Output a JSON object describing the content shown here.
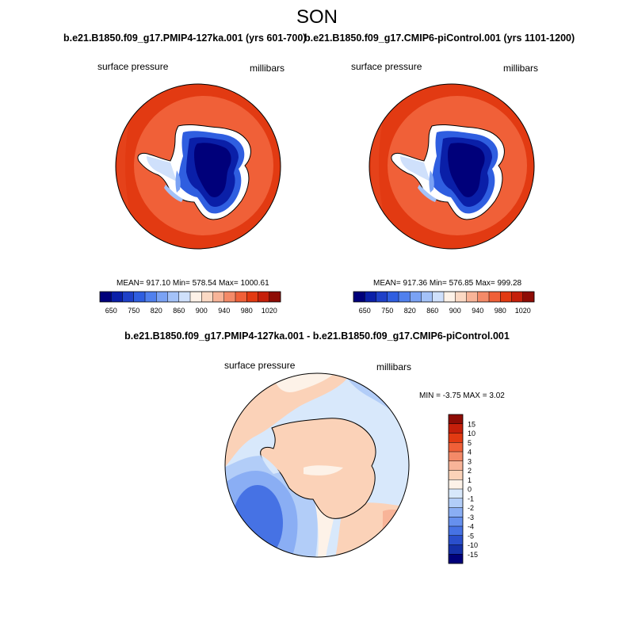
{
  "figure": {
    "title": "SON"
  },
  "panels": [
    {
      "case_title": "b.e21.B1850.f09_g17.PMIP4-127ka.001 (yrs 601-700)",
      "variable_label": "surface pressure",
      "units_label": "millibars",
      "stats": {
        "mean": "917.10",
        "min": "578.54",
        "max": "1000.61"
      },
      "stats_text": "MEAN= 917.10  Min= 578.54  Max= 1000.61"
    },
    {
      "case_title": "b.e21.B1850.f09_g17.CMIP6-piControl.001 (yrs 1101-1200)",
      "variable_label": "surface pressure",
      "units_label": "millibars",
      "stats": {
        "mean": "917.36",
        "min": "576.85",
        "max": "999.28"
      },
      "stats_text": "MEAN= 917.36  Min= 576.85  Max= 999.28"
    }
  ],
  "colorbar_abs": {
    "levels": [
      650,
      700,
      750,
      780,
      820,
      840,
      860,
      880,
      900,
      920,
      940,
      960,
      980,
      1000,
      1020
    ],
    "tick_labels": [
      "650",
      "750",
      "820",
      "860",
      "900",
      "940",
      "980",
      "1020"
    ],
    "colors": [
      "#00007a",
      "#0a1fa8",
      "#1e40c8",
      "#2f5ee0",
      "#5080ee",
      "#7aa2f4",
      "#a4c2f8",
      "#cfe0fb",
      "#fdf2e8",
      "#fbd9c4",
      "#f8b498",
      "#f48a68",
      "#f06038",
      "#e23a12",
      "#c51f0a",
      "#8e0c05"
    ]
  },
  "difference": {
    "title": "b.e21.B1850.f09_g17.PMIP4-127ka.001 - b.e21.B1850.f09_g17.CMIP6-piControl.001",
    "variable_label": "surface pressure",
    "units_label": "millibars",
    "min": "-3.75",
    "max": "3.02",
    "minmax_text": "MIN =  -3.75 MAX =   3.02",
    "colorbar": {
      "levels": [
        15,
        10,
        5,
        4,
        3,
        2,
        1,
        0,
        -1,
        -2,
        -3,
        -4,
        -5,
        -10,
        -15
      ],
      "tick_labels": [
        "15",
        "10",
        "5",
        "4",
        "3",
        "2",
        "1",
        "0",
        "-1",
        "-2",
        "-3",
        "-4",
        "-5",
        "-10",
        "-15"
      ],
      "colors": [
        "#8e0c05",
        "#c51f0a",
        "#e23a12",
        "#f06038",
        "#f48a68",
        "#f8b498",
        "#fbd2b8",
        "#fdf2e8",
        "#d8e8fb",
        "#b2cdf8",
        "#8aaef4",
        "#6690ee",
        "#4672e4",
        "#2a4fcc",
        "#1530a8",
        "#00007a"
      ]
    }
  }
}
